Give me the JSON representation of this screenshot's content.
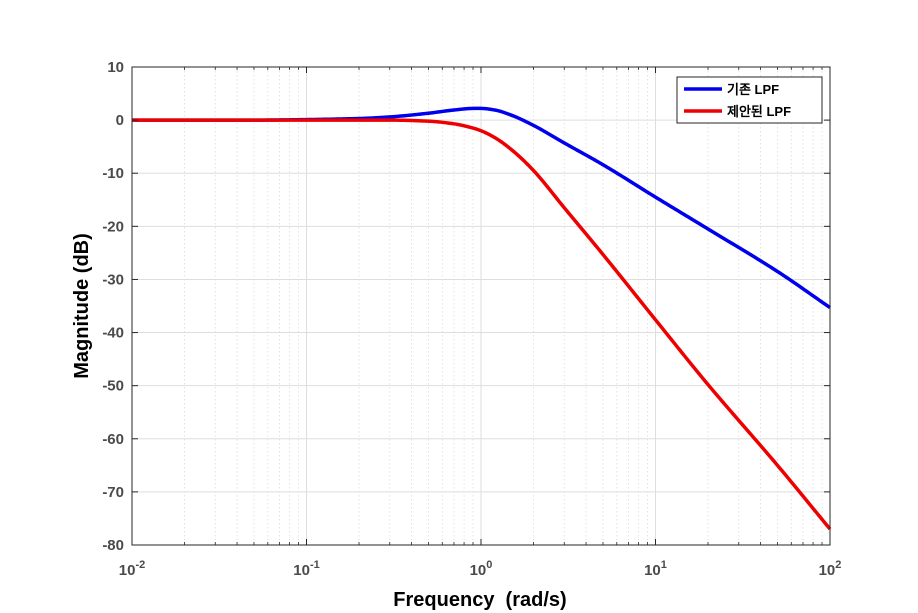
{
  "chart_data": {
    "type": "line",
    "xlabel": "Frequency  (rad/s)",
    "ylabel": "Magnitude (dB)",
    "xscale": "log",
    "xlim": [
      0.01,
      100
    ],
    "ylim": [
      -80,
      10
    ],
    "grid": true,
    "minor_grid": true,
    "legend_position": "top-right",
    "x_ticks": [
      {
        "base": "10",
        "exp": "-2",
        "value": 0.01
      },
      {
        "base": "10",
        "exp": "-1",
        "value": 0.1
      },
      {
        "base": "10",
        "exp": "0",
        "value": 1
      },
      {
        "base": "10",
        "exp": "1",
        "value": 10
      },
      {
        "base": "10",
        "exp": "2",
        "value": 100
      }
    ],
    "y_ticks": [
      {
        "label": "10",
        "value": 10
      },
      {
        "label": "0",
        "value": 0
      },
      {
        "label": "-10",
        "value": -10
      },
      {
        "label": "-20",
        "value": -20
      },
      {
        "label": "-30",
        "value": -30
      },
      {
        "label": "-40",
        "value": -40
      },
      {
        "label": "-50",
        "value": -50
      },
      {
        "label": "-60",
        "value": -60
      },
      {
        "label": "-70",
        "value": -70
      },
      {
        "label": "-80",
        "value": -80
      }
    ],
    "series": [
      {
        "name": "기존 LPF",
        "color": "#0000ee",
        "x": [
          0.01,
          0.02,
          0.05,
          0.1,
          0.2,
          0.3,
          0.5,
          0.7,
          0.9,
          1.0,
          1.2,
          1.5,
          2,
          3,
          5,
          10,
          20,
          50,
          100
        ],
        "y": [
          0,
          0,
          0,
          0.1,
          0.3,
          0.6,
          1.3,
          1.9,
          2.2,
          2.2,
          1.9,
          0.9,
          -1.0,
          -4.3,
          -8.4,
          -14.5,
          -20.5,
          -28.5,
          -35.3
        ]
      },
      {
        "name": "제안된 LPF",
        "color": "#ee0000",
        "x": [
          0.01,
          0.02,
          0.05,
          0.1,
          0.2,
          0.3,
          0.5,
          0.7,
          0.9,
          1.0,
          1.2,
          1.5,
          2,
          3,
          5,
          10,
          20,
          50,
          100
        ],
        "y": [
          0,
          0,
          0,
          0,
          0,
          0,
          -0.2,
          -0.7,
          -1.5,
          -2.0,
          -3.3,
          -5.6,
          -9.5,
          -16.5,
          -25.3,
          -37.6,
          -49.8,
          -65.0,
          -77.0
        ]
      }
    ]
  }
}
